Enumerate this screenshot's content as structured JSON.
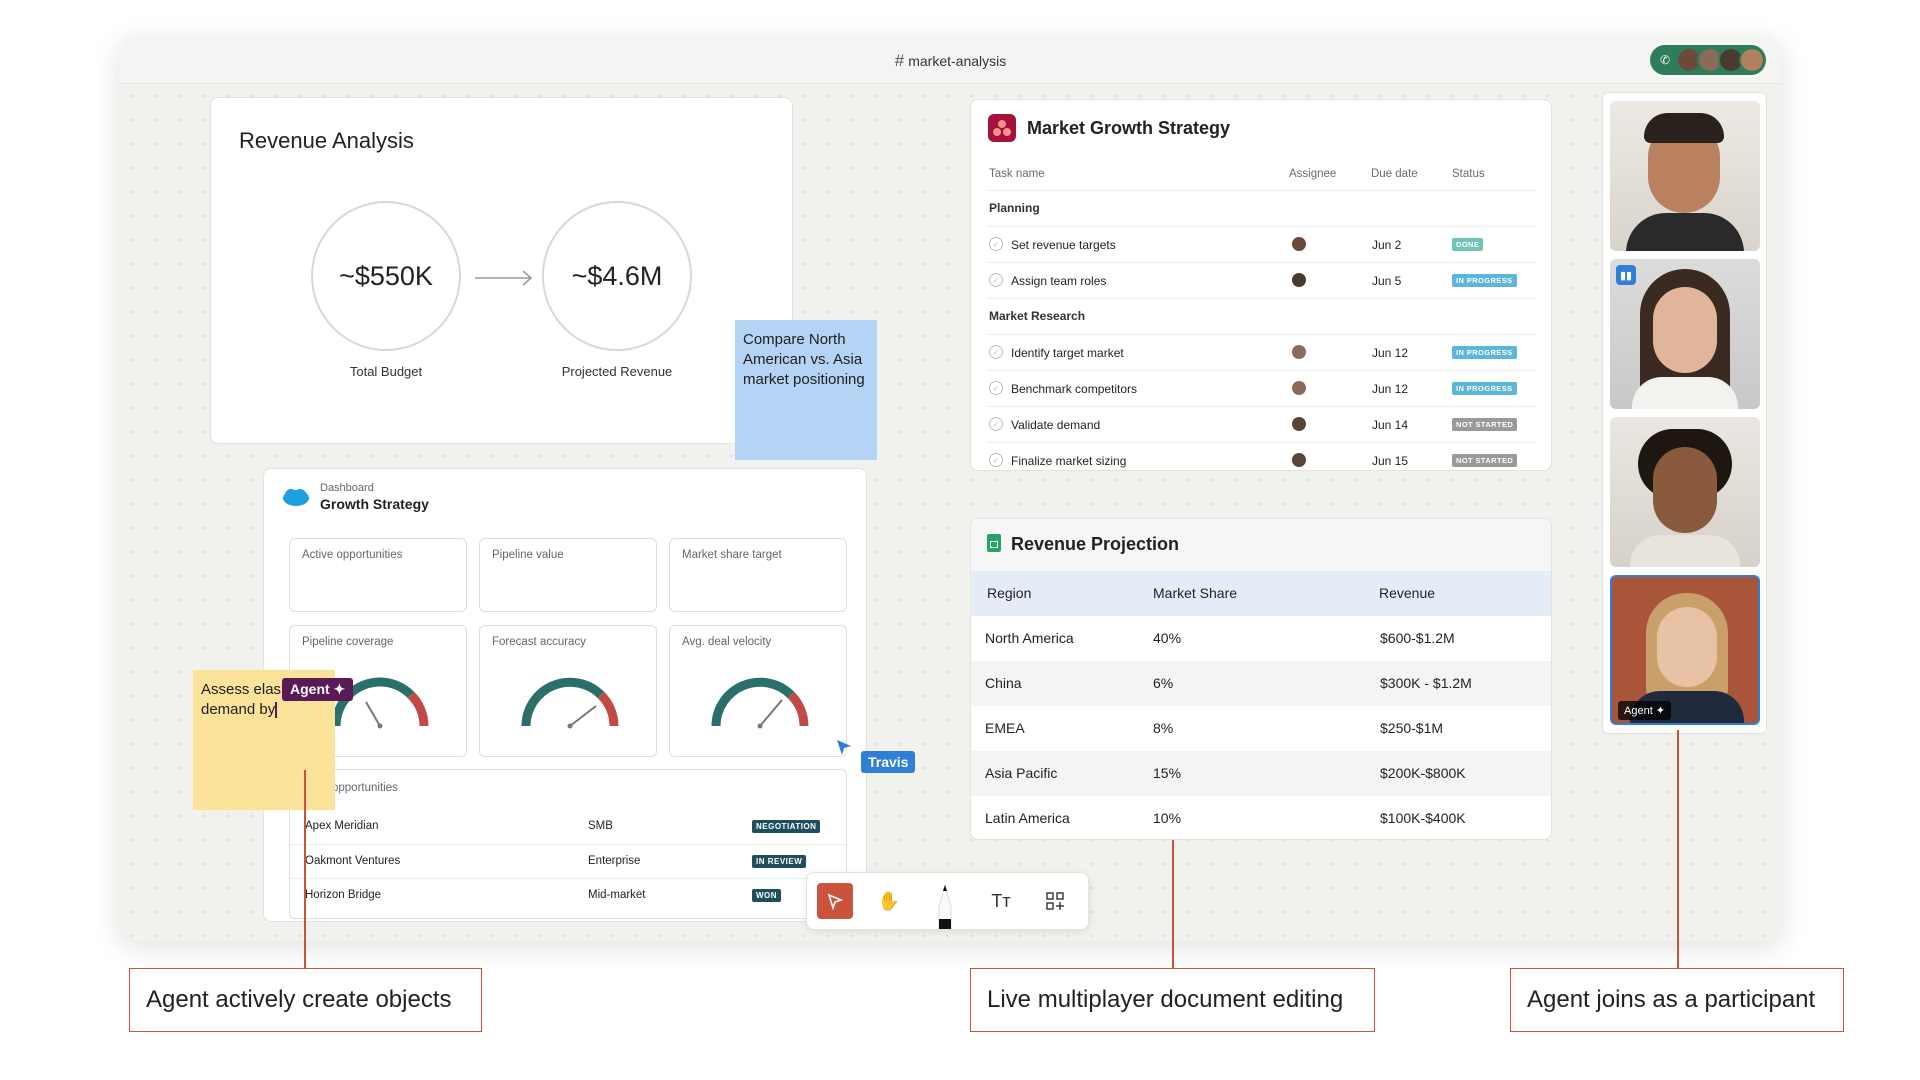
{
  "topbar": {
    "channel": "market-analysis"
  },
  "revenue_analysis": {
    "title": "Revenue Analysis",
    "budget_value": "~$550K",
    "budget_label": "Total Budget",
    "projected_value": "~$4.6M",
    "projected_label": "Projected Revenue"
  },
  "blue_sticky": {
    "text": "Compare North American vs. Asia market positioning"
  },
  "yellow_sticky": {
    "line1": "Assess elas",
    "line2": "demand by"
  },
  "agent_label": "Agent ✦",
  "travis_label": "Travis",
  "dashboard": {
    "kicker": "Dashboard",
    "title": "Growth Strategy",
    "kpis": [
      "Active opportunities",
      "Pipeline value",
      "Market share target"
    ],
    "gauges": [
      "Pipeline coverage",
      "Forecast accuracy",
      "Avg. deal velocity"
    ],
    "table_title": "opportunities",
    "rows": [
      {
        "name": "Apex Meridian",
        "segment": "SMB",
        "status": "NEGOTIATION",
        "color": "#1f4e5f"
      },
      {
        "name": "Oakmont Ventures",
        "segment": "Enterprise",
        "status": "IN REVIEW",
        "color": "#1f4e5f"
      },
      {
        "name": "Horizon Bridge",
        "segment": "Mid-market",
        "status": "WON",
        "color": "#1f4e5f"
      }
    ]
  },
  "asana": {
    "title": "Market Growth Strategy",
    "headers": {
      "task": "Task name",
      "assignee": "Assignee",
      "due": "Due date",
      "status": "Status"
    },
    "sections": [
      {
        "name": "Planning",
        "tasks": [
          {
            "name": "Set revenue targets",
            "due": "Jun 2",
            "status": "DONE",
            "color": "#6fc5b5"
          },
          {
            "name": "Assign team roles",
            "due": "Jun 5",
            "status": "IN PROGRESS",
            "color": "#5bb6d9"
          }
        ]
      },
      {
        "name": "Market Research",
        "tasks": [
          {
            "name": "Identify target market",
            "due": "Jun 12",
            "status": "IN PROGRESS",
            "color": "#5bb6d9"
          },
          {
            "name": "Benchmark competitors",
            "due": "Jun 12",
            "status": "IN PROGRESS",
            "color": "#5bb6d9"
          },
          {
            "name": "Validate demand",
            "due": "Jun 14",
            "status": "NOT STARTED",
            "color": "#9a9a9a"
          },
          {
            "name": "Finalize market sizing",
            "due": "Jun 15",
            "status": "NOT STARTED",
            "color": "#9a9a9a"
          }
        ]
      }
    ]
  },
  "projection": {
    "title": "Revenue Projection",
    "headers": [
      "Region",
      "Market Share",
      "Revenue"
    ],
    "rows": [
      [
        "North America",
        "40%",
        "$600-$1.2M"
      ],
      [
        "China",
        "6%",
        "$300K - $1.2M"
      ],
      [
        "EMEA",
        "8%",
        "$250-$1M"
      ],
      [
        "Asia Pacific",
        "15%",
        "$200K-$800K"
      ],
      [
        "Latin America",
        "10%",
        "$100K-$400K"
      ]
    ]
  },
  "video": {
    "agent_tag": "Agent ✦"
  },
  "callouts": {
    "left": "Agent actively create objects",
    "middle": "Live multiplayer document editing",
    "right": "Agent joins as a participant"
  },
  "colors": {
    "accent": "#c9543b",
    "agent": "#5a1a57",
    "cursor_blue": "#2f7fd6"
  }
}
